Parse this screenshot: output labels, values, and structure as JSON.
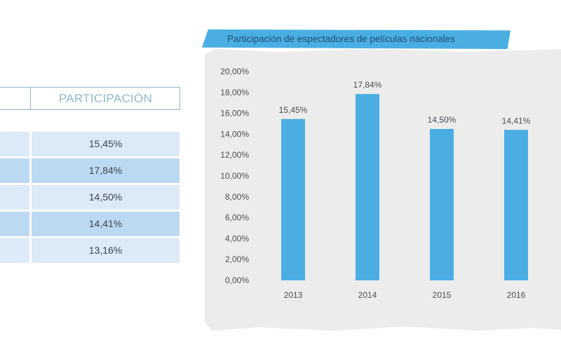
{
  "table": {
    "header": [
      "",
      "PARTICIPACIÓN"
    ],
    "rows": [
      {
        "year": "",
        "value": "15,45%"
      },
      {
        "year": "",
        "value": "17,84%"
      },
      {
        "year": "",
        "value": "14,50%"
      },
      {
        "year": "",
        "value": "14,41%"
      },
      {
        "year": "",
        "value": "13,16%"
      }
    ]
  },
  "chart_data": {
    "type": "bar",
    "title": "Participación de espectadores de películas nacionales",
    "categories": [
      "2013",
      "2014",
      "2015",
      "2016"
    ],
    "values": [
      15.45,
      17.84,
      14.5,
      14.41
    ],
    "data_labels": [
      "15,45%",
      "17,84%",
      "14,50%",
      "14,41%"
    ],
    "yticks": [
      "0,00%",
      "2,00%",
      "4,00%",
      "6,00%",
      "8,00%",
      "10,00%",
      "12,00%",
      "14,00%",
      "16,00%",
      "18,00%",
      "20,00%"
    ],
    "ylim": [
      0,
      20
    ],
    "xlabel": "",
    "ylabel": "",
    "bar_color": "#4aaee3",
    "grid": false,
    "legend": "none"
  }
}
